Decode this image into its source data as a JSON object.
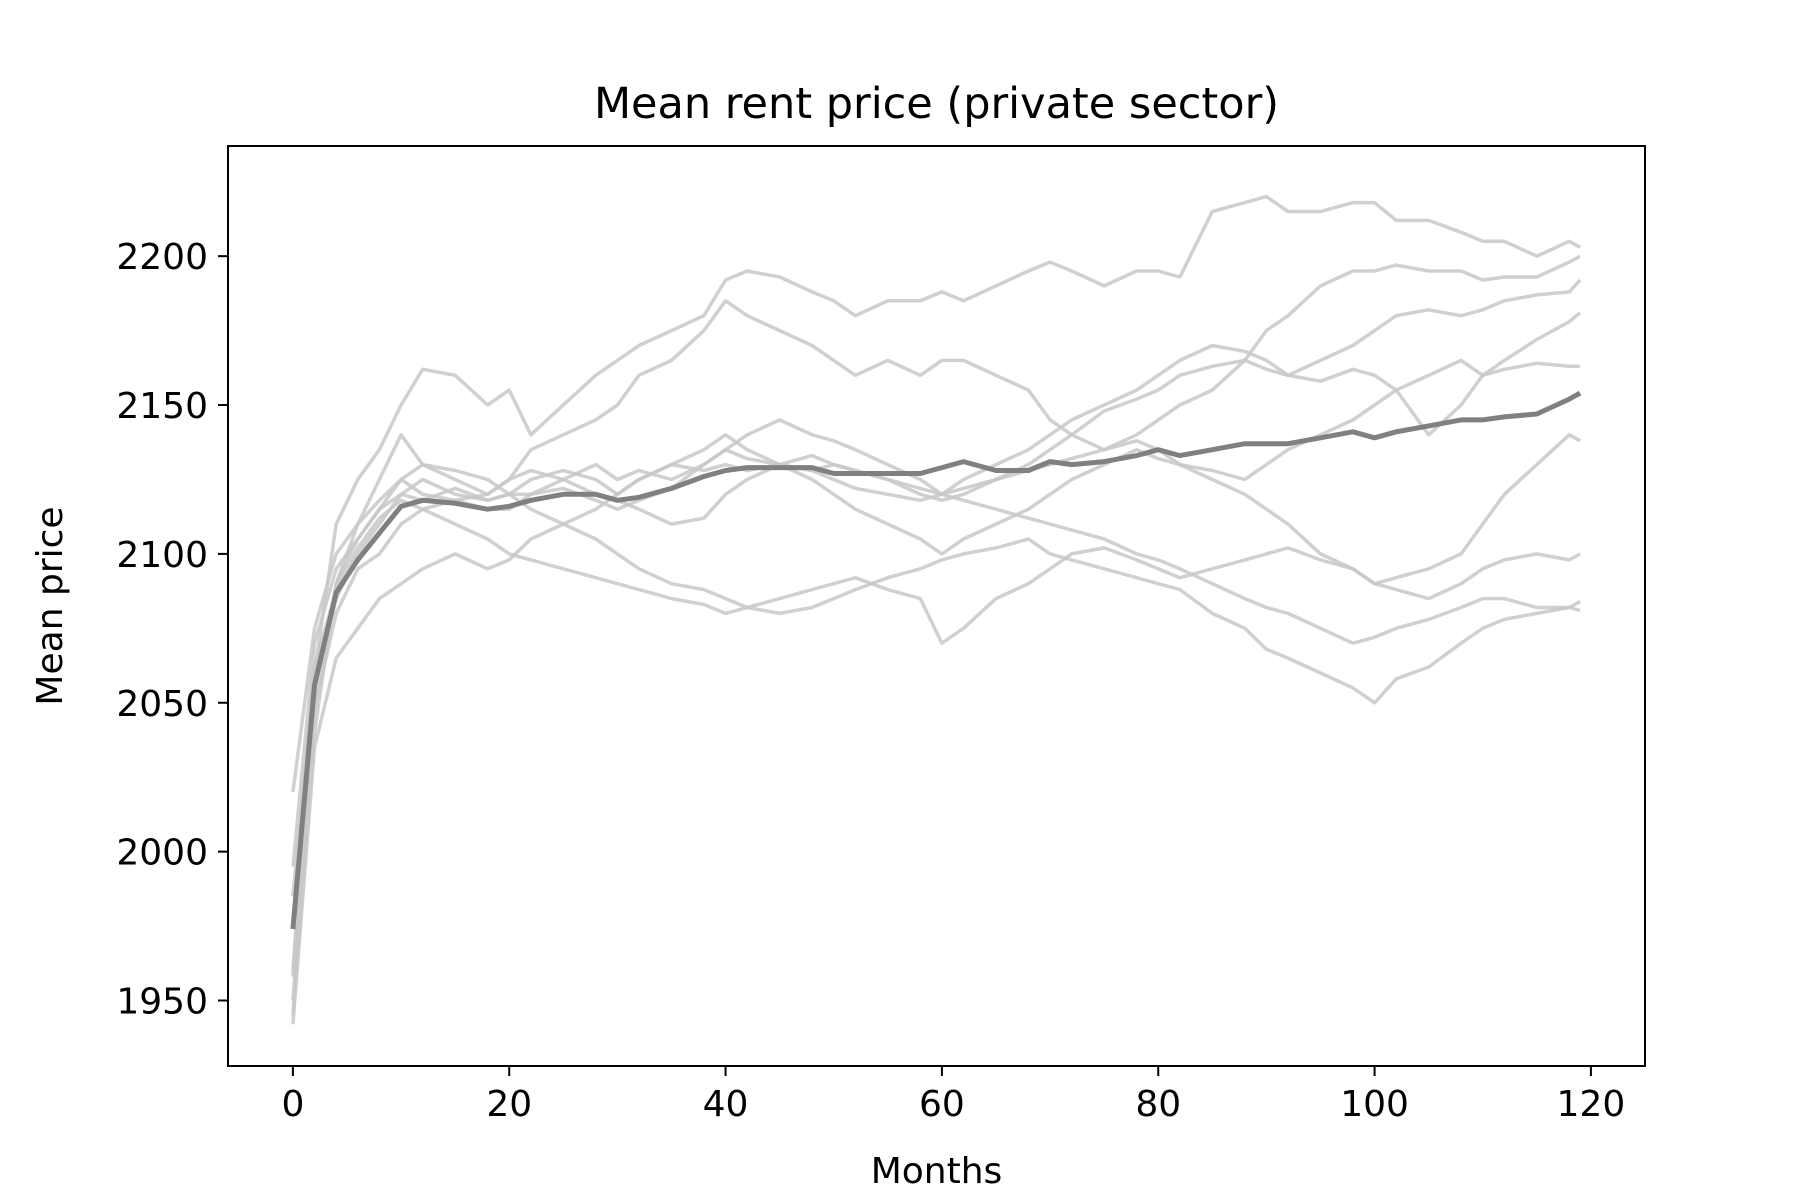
{
  "chart_data": {
    "type": "line",
    "title": "Mean rent price (private sector)",
    "xlabel": "Months",
    "ylabel": "Mean price",
    "xlim": [
      -6,
      125
    ],
    "ylim": [
      1928,
      2237
    ],
    "xticks": [
      0,
      20,
      40,
      60,
      80,
      100,
      120
    ],
    "yticks": [
      1950,
      2000,
      2050,
      2100,
      2150,
      2200
    ],
    "grid": false,
    "legend": "none",
    "colors": {
      "runs": "#c8c8c8",
      "mean": "#808080",
      "frame": "#000000"
    },
    "x": [
      0,
      2,
      4,
      6,
      8,
      10,
      12,
      15,
      18,
      20,
      22,
      25,
      28,
      30,
      32,
      35,
      38,
      40,
      42,
      45,
      48,
      50,
      52,
      55,
      58,
      60,
      62,
      65,
      68,
      70,
      72,
      75,
      78,
      80,
      82,
      85,
      88,
      90,
      92,
      95,
      98,
      100,
      102,
      105,
      108,
      110,
      112,
      115,
      118,
      119
    ],
    "series": [
      {
        "role": "mean",
        "values": [
          1974,
          2056,
          2087,
          2098,
          2107,
          2116,
          2118,
          2117,
          2115,
          2116,
          2118,
          2120,
          2120,
          2118,
          2119,
          2122,
          2126,
          2128,
          2129,
          2129,
          2129,
          2127,
          2127,
          2127,
          2127,
          2129,
          2131,
          2128,
          2128,
          2131,
          2130,
          2131,
          2133,
          2135,
          2133,
          2135,
          2137,
          2137,
          2137,
          2139,
          2141,
          2139,
          2141,
          2143,
          2145,
          2145,
          2146,
          2147,
          2152,
          2154
        ]
      },
      {
        "role": "run",
        "values": [
          1960,
          2060,
          2110,
          2125,
          2135,
          2150,
          2162,
          2160,
          2150,
          2155,
          2140,
          2150,
          2160,
          2165,
          2170,
          2175,
          2180,
          2192,
          2195,
          2193,
          2188,
          2185,
          2180,
          2185,
          2185,
          2188,
          2185,
          2190,
          2195,
          2198,
          2195,
          2190,
          2195,
          2195,
          2193,
          2215,
          2218,
          2220,
          2215,
          2215,
          2218,
          2218,
          2212,
          2212,
          2208,
          2205,
          2205,
          2200,
          2205,
          2203
        ]
      },
      {
        "role": "run",
        "values": [
          1945,
          2040,
          2090,
          2110,
          2125,
          2140,
          2130,
          2125,
          2120,
          2125,
          2135,
          2140,
          2145,
          2150,
          2160,
          2165,
          2175,
          2185,
          2180,
          2175,
          2170,
          2165,
          2160,
          2165,
          2160,
          2165,
          2165,
          2160,
          2155,
          2145,
          2140,
          2135,
          2140,
          2145,
          2150,
          2155,
          2165,
          2175,
          2180,
          2190,
          2195,
          2195,
          2197,
          2195,
          2195,
          2192,
          2193,
          2193,
          2198,
          2200
        ]
      },
      {
        "role": "run",
        "values": [
          2020,
          2075,
          2100,
          2110,
          2118,
          2125,
          2120,
          2118,
          2115,
          2115,
          2120,
          2125,
          2130,
          2125,
          2128,
          2125,
          2130,
          2135,
          2140,
          2145,
          2140,
          2138,
          2135,
          2130,
          2125,
          2120,
          2125,
          2130,
          2135,
          2140,
          2145,
          2150,
          2155,
          2160,
          2165,
          2170,
          2168,
          2165,
          2160,
          2165,
          2170,
          2175,
          2180,
          2182,
          2180,
          2182,
          2185,
          2187,
          2188,
          2192
        ]
      },
      {
        "role": "run",
        "values": [
          1975,
          2055,
          2085,
          2100,
          2110,
          2120,
          2125,
          2120,
          2118,
          2120,
          2125,
          2128,
          2125,
          2120,
          2125,
          2130,
          2135,
          2140,
          2135,
          2130,
          2128,
          2130,
          2128,
          2125,
          2120,
          2118,
          2120,
          2125,
          2130,
          2135,
          2140,
          2148,
          2152,
          2155,
          2160,
          2163,
          2165,
          2162,
          2160,
          2158,
          2162,
          2160,
          2155,
          2160,
          2165,
          2160,
          2162,
          2164,
          2163,
          2163
        ]
      },
      {
        "role": "run",
        "values": [
          1942,
          2035,
          2065,
          2075,
          2085,
          2090,
          2095,
          2100,
          2095,
          2098,
          2105,
          2110,
          2115,
          2120,
          2125,
          2130,
          2128,
          2130,
          2128,
          2130,
          2125,
          2120,
          2115,
          2110,
          2105,
          2100,
          2105,
          2110,
          2115,
          2120,
          2125,
          2130,
          2135,
          2132,
          2130,
          2128,
          2125,
          2130,
          2135,
          2140,
          2145,
          2150,
          2155,
          2140,
          2150,
          2160,
          2165,
          2172,
          2178,
          2181
        ]
      },
      {
        "role": "run",
        "values": [
          1995,
          2070,
          2095,
          2105,
          2115,
          2120,
          2118,
          2122,
          2118,
          2120,
          2120,
          2122,
          2118,
          2115,
          2118,
          2122,
          2130,
          2135,
          2132,
          2130,
          2128,
          2125,
          2122,
          2120,
          2118,
          2120,
          2122,
          2125,
          2128,
          2130,
          2132,
          2135,
          2138,
          2135,
          2130,
          2125,
          2120,
          2115,
          2110,
          2100,
          2095,
          2090,
          2088,
          2085,
          2090,
          2095,
          2098,
          2100,
          2098,
          2100
        ]
      },
      {
        "role": "run",
        "values": [
          1958,
          2050,
          2090,
          2105,
          2115,
          2125,
          2130,
          2128,
          2125,
          2120,
          2115,
          2110,
          2105,
          2100,
          2095,
          2090,
          2088,
          2085,
          2082,
          2080,
          2082,
          2085,
          2088,
          2092,
          2095,
          2098,
          2100,
          2102,
          2105,
          2100,
          2098,
          2095,
          2092,
          2090,
          2088,
          2080,
          2075,
          2068,
          2065,
          2060,
          2055,
          2050,
          2058,
          2062,
          2070,
          2075,
          2078,
          2080,
          2082,
          2084
        ]
      },
      {
        "role": "run",
        "values": [
          1950,
          2048,
          2080,
          2095,
          2100,
          2110,
          2115,
          2118,
          2120,
          2125,
          2128,
          2125,
          2120,
          2118,
          2115,
          2110,
          2112,
          2120,
          2125,
          2130,
          2133,
          2130,
          2128,
          2125,
          2122,
          2120,
          2118,
          2115,
          2112,
          2110,
          2108,
          2105,
          2100,
          2098,
          2095,
          2090,
          2085,
          2082,
          2080,
          2075,
          2070,
          2072,
          2075,
          2078,
          2082,
          2085,
          2085,
          2082,
          2082,
          2081
        ]
      },
      {
        "role": "run",
        "values": [
          1985,
          2062,
          2088,
          2102,
          2112,
          2118,
          2115,
          2110,
          2105,
          2100,
          2098,
          2095,
          2092,
          2090,
          2088,
          2085,
          2083,
          2080,
          2082,
          2085,
          2088,
          2090,
          2092,
          2088,
          2085,
          2070,
          2075,
          2085,
          2090,
          2095,
          2100,
          2102,
          2098,
          2095,
          2092,
          2095,
          2098,
          2100,
          2102,
          2098,
          2095,
          2090,
          2092,
          2095,
          2100,
          2110,
          2120,
          2130,
          2140,
          2138
        ]
      }
    ]
  }
}
